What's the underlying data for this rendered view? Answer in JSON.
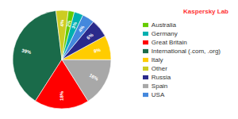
{
  "chart_data": {
    "type": "pie",
    "categories": [
      "International (.com, .org)",
      "Great Britain",
      "Spain",
      "Italy",
      "Russia",
      "USA",
      "Germany",
      "Australia",
      "Other"
    ],
    "values": [
      39,
      18,
      16,
      8,
      6,
      4,
      3,
      2,
      4
    ],
    "value_labels": [
      "39%",
      "18%",
      "16%",
      "8%",
      "6%",
      "4%",
      "3%",
      "2%",
      "4%"
    ],
    "colors": [
      "#1a6b4a",
      "#ff0000",
      "#a8a8a8",
      "#ffcc00",
      "#2a2a8b",
      "#4488dd",
      "#00b0b0",
      "#66cc00",
      "#cccc22"
    ],
    "data_labels": true,
    "legend": "right",
    "annotations": [
      {
        "text": "Kaspersky Lab",
        "color": "#ff3333"
      }
    ]
  }
}
